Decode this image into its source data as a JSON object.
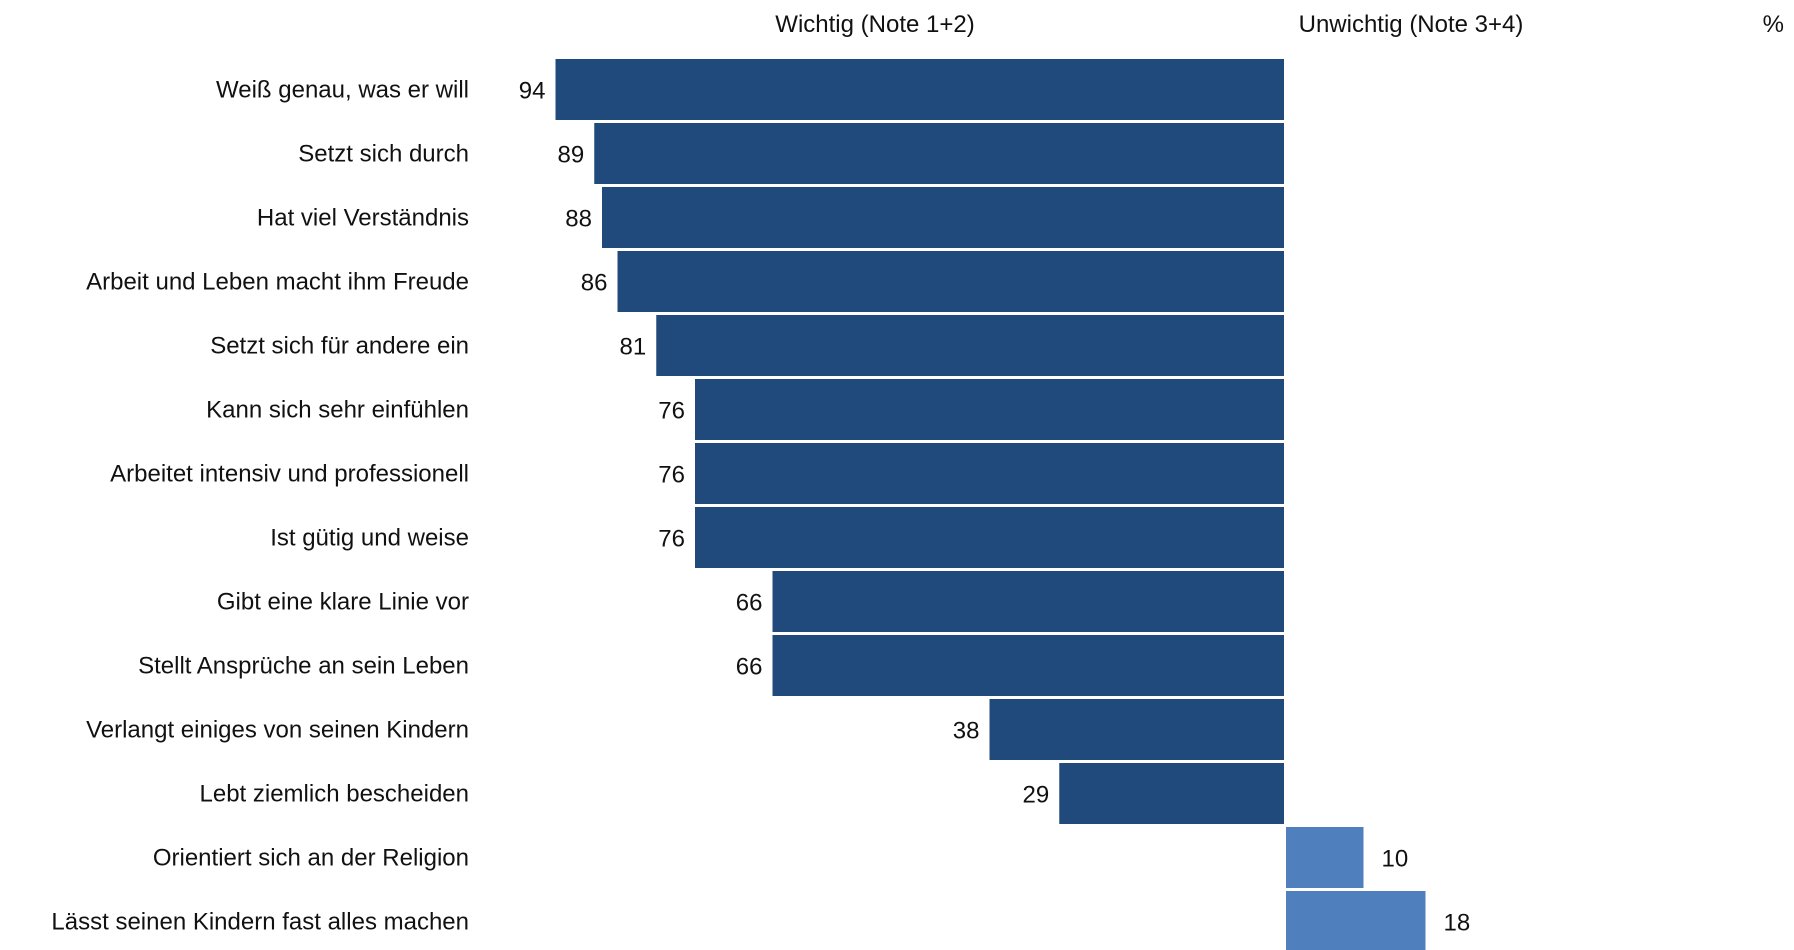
{
  "chart_data": {
    "type": "bar",
    "orientation": "horizontal",
    "headers": {
      "left": "Wichtig (Note 1+2)",
      "right": "Unwichtig (Note 3+4)",
      "unit": "%"
    },
    "categories": [
      "Weiß genau, was er will",
      "Setzt sich durch",
      "Hat viel Verständnis",
      "Arbeit und Leben macht ihm Freude",
      "Setzt sich für andere ein",
      "Kann sich sehr einfühlen",
      "Arbeitet intensiv und professionell",
      "Ist gütig und weise",
      "Gibt eine klare Linie vor",
      "Stellt Ansprüche an sein Leben",
      "Verlangt einiges von seinen Kindern",
      "Lebt ziemlich bescheiden",
      "Orientiert sich an der Religion",
      "Lässt seinen Kindern fast alles machen"
    ],
    "series": [
      {
        "name": "Wichtig (Note 1+2)",
        "values": [
          94,
          89,
          88,
          86,
          81,
          76,
          76,
          76,
          66,
          66,
          38,
          29,
          null,
          null
        ]
      },
      {
        "name": "Unwichtig (Note 3+4)",
        "values": [
          null,
          null,
          null,
          null,
          null,
          null,
          null,
          null,
          null,
          null,
          null,
          null,
          10,
          18
        ]
      }
    ],
    "colors": {
      "wichtig": "#204a7b",
      "unwichtig": "#4f80bd"
    },
    "grid": false,
    "legend": "top"
  }
}
